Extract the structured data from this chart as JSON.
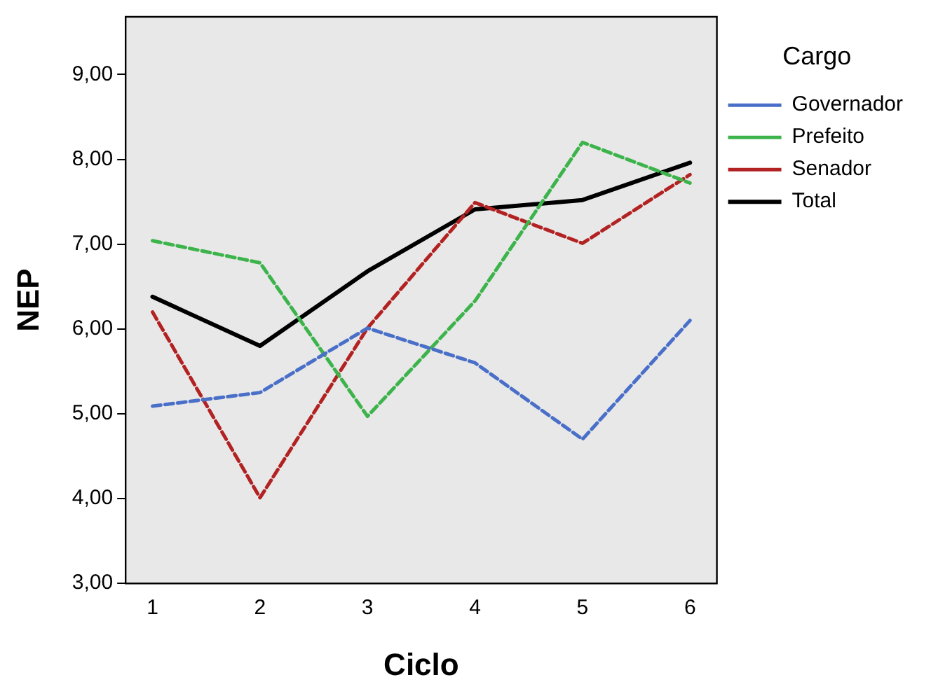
{
  "chart_data": {
    "type": "line",
    "xlabel": "Ciclo",
    "ylabel": "NEP",
    "legend_title": "Cargo",
    "legend": "right",
    "grid": false,
    "marker": "none",
    "x": [
      1,
      2,
      3,
      4,
      5,
      6
    ],
    "xlim": [
      0.75,
      6.25
    ],
    "xticks": [
      1,
      2,
      3,
      4,
      5,
      6
    ],
    "ylim": [
      3,
      9.68
    ],
    "yticks": [
      {
        "value": 3,
        "label": "3,00"
      },
      {
        "value": 4,
        "label": "4,00"
      },
      {
        "value": 5,
        "label": "5,00"
      },
      {
        "value": 6,
        "label": "6,00"
      },
      {
        "value": 7,
        "label": "7,00"
      },
      {
        "value": 8,
        "label": "8,00"
      },
      {
        "value": 9,
        "label": "9,00"
      }
    ],
    "series": [
      {
        "name": "Governador",
        "color": "#4a6fc9",
        "line_style": "dashed",
        "values": [
          5.09,
          5.25,
          6.01,
          5.6,
          4.7,
          6.1
        ]
      },
      {
        "name": "Prefeito",
        "color": "#3cb44b",
        "line_style": "dashed",
        "values": [
          7.04,
          6.78,
          4.97,
          6.33,
          8.2,
          7.72
        ]
      },
      {
        "name": "Senador",
        "color": "#b22222",
        "line_style": "dashed",
        "values": [
          6.2,
          4.01,
          6.01,
          7.49,
          7.01,
          7.82
        ]
      },
      {
        "name": "Total",
        "color": "#000000",
        "line_style": "solid",
        "values": [
          6.38,
          5.8,
          6.68,
          7.41,
          7.52,
          7.96
        ]
      }
    ]
  }
}
